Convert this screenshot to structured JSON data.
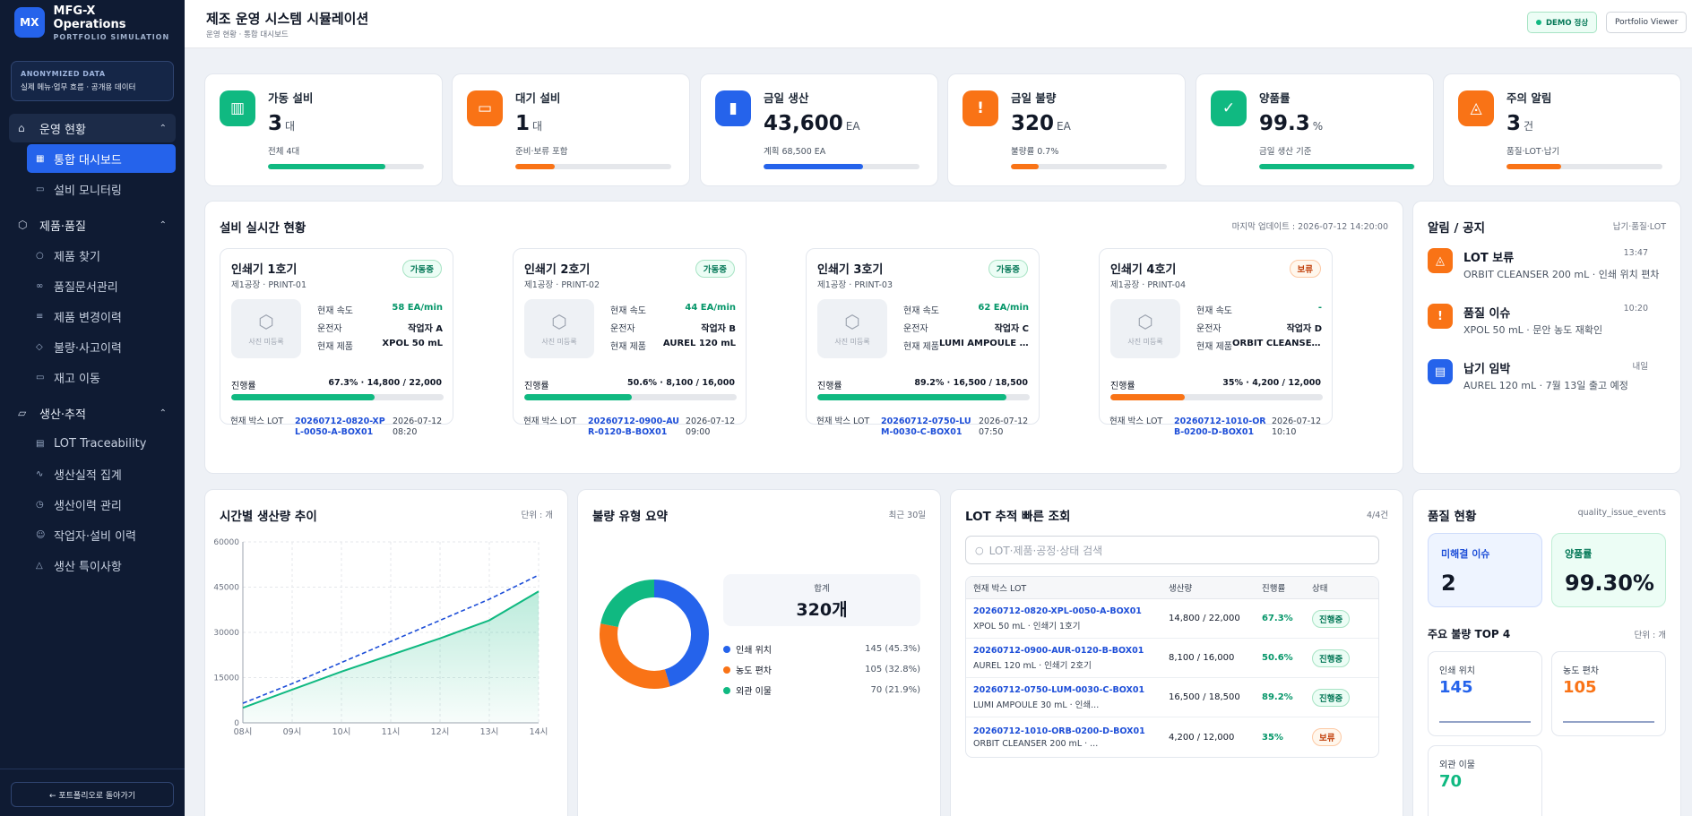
{
  "sidebar": {
    "brand": {
      "logo": "MX",
      "name": "MFG-X Operations",
      "sub": "PORTFOLIO SIMULATION"
    },
    "anon": {
      "title": "ANONYMIZED DATA",
      "desc": "실제 메뉴·업무 흐름 · 공개용 데이터"
    },
    "groups": [
      {
        "label": "운영 현황",
        "icon": "home-icon",
        "items": [
          {
            "label": "통합 대시보드",
            "icon": "grid-icon",
            "active": true
          },
          {
            "label": "설비 모니터링",
            "icon": "monitor-icon"
          }
        ]
      },
      {
        "label": "제품·품질",
        "icon": "box-icon",
        "items": [
          {
            "label": "제품 찾기",
            "icon": "search-icon"
          },
          {
            "label": "품질문서관리",
            "icon": "link-icon"
          },
          {
            "label": "제품 변경이력",
            "icon": "database-icon"
          },
          {
            "label": "불량·사고이력",
            "icon": "shield-icon"
          },
          {
            "label": "재고 이동",
            "icon": "truck-icon"
          }
        ]
      },
      {
        "label": "생산·추적",
        "icon": "folder-icon",
        "items": [
          {
            "label": "LOT Traceability",
            "icon": "clipboard-icon"
          },
          {
            "label": "생산실적 집계",
            "icon": "activity-icon"
          },
          {
            "label": "생산이력 관리",
            "icon": "history-icon"
          },
          {
            "label": "작업자·설비 이력",
            "icon": "users-icon"
          },
          {
            "label": "생산 특이사항",
            "icon": "warning-icon"
          }
        ]
      }
    ],
    "back": "← 포트폴리오로 돌아가기"
  },
  "header": {
    "title": "제조 운영 시스템 시뮬레이션",
    "crumb": "운영 현황 · 통합 대시보드",
    "demo": "DEMO 정상",
    "viewer": "Portfolio Viewer"
  },
  "kpis": [
    {
      "label": "가동 설비",
      "value": "3",
      "unit": "대",
      "sub": "전체 4대",
      "progress": 0.75,
      "color": "#10b981",
      "icon": "factory-icon"
    },
    {
      "label": "대기 설비",
      "value": "1",
      "unit": "대",
      "sub": "준비·보류 포함",
      "progress": 0.25,
      "color": "#f97316",
      "icon": "monitor-icon"
    },
    {
      "label": "금일 생산",
      "value": "43,600",
      "unit": "EA",
      "sub": "계획 68,500 EA",
      "progress": 0.64,
      "color": "#2563eb",
      "icon": "bar-chart-icon"
    },
    {
      "label": "금일 불량",
      "value": "320",
      "unit": "EA",
      "sub": "불량률 0.7%",
      "progress": 0.18,
      "color": "#f97316",
      "icon": "warning-icon"
    },
    {
      "label": "양품률",
      "value": "99.3",
      "unit": "%",
      "sub": "금일 생산 기준",
      "progress": 0.993,
      "color": "#10b981",
      "icon": "shield-check-icon"
    },
    {
      "label": "주의 알림",
      "value": "3",
      "unit": "건",
      "sub": "품질·LOT·납기",
      "progress": 0.35,
      "color": "#f97316",
      "icon": "siren-icon"
    }
  ],
  "equipment": {
    "title": "설비 실시간 현황",
    "updated": "마지막 업데이트 : 2026-07-12 14:20:00",
    "photo_label": "사진 미등록",
    "speed_label": "현재 속도",
    "operator_label": "운전자",
    "product_label": "현재 제품",
    "progress_label": "진행률",
    "box_lot_label": "현재 박스 LOT",
    "items": [
      {
        "name": "인쇄기 1호기",
        "loc": "제1공장 · PRINT-01",
        "status": "가동중",
        "speed": "58 EA/min",
        "operator": "작업자 A",
        "product": "XPOL 50 mL",
        "progress_text": "67.3% · 14,800 / 22,000",
        "progress": 0.673,
        "lot": "20260712-0820-XPL-0050-A-BOX01",
        "date": "2026-07-12",
        "time": "08:20"
      },
      {
        "name": "인쇄기 2호기",
        "loc": "제1공장 · PRINT-02",
        "status": "가동중",
        "speed": "44 EA/min",
        "operator": "작업자 B",
        "product": "AUREL 120 mL",
        "progress_text": "50.6% · 8,100 / 16,000",
        "progress": 0.506,
        "lot": "20260712-0900-AUR-0120-B-BOX01",
        "date": "2026-07-12",
        "time": "09:00"
      },
      {
        "name": "인쇄기 3호기",
        "loc": "제1공장 · PRINT-03",
        "status": "가동중",
        "speed": "62 EA/min",
        "operator": "작업자 C",
        "product": "LUMI AMPOULE 3...",
        "progress_text": "89.2% · 16,500 / 18,500",
        "progress": 0.892,
        "lot": "20260712-0750-LUM-0030-C-BOX01",
        "date": "2026-07-12",
        "time": "07:50"
      },
      {
        "name": "인쇄기 4호기",
        "loc": "제1공장 · PRINT-04",
        "status": "보류",
        "speed": "-",
        "operator": "작업자 D",
        "product": "ORBIT CLEANSER ...",
        "progress_text": "35% · 4,200 / 12,000",
        "progress": 0.35,
        "lot": "20260712-1010-ORB-0200-D-BOX01",
        "date": "2026-07-12",
        "time": "10:10"
      }
    ]
  },
  "alerts": {
    "title": "알림 / 공지",
    "meta": "납기·품질·LOT",
    "items": [
      {
        "title": "LOT 보류",
        "desc": "ORBIT CLEANSER 200 mL · 인쇄 위치 편차",
        "time": "13:47",
        "color": "#f97316",
        "icon": "siren-icon"
      },
      {
        "title": "품질 이슈",
        "desc": "XPOL 50 mL · 문안 농도 재확인",
        "time": "10:20",
        "color": "#f97316",
        "icon": "warning-icon"
      },
      {
        "title": "납기 임박",
        "desc": "AUREL 120 mL · 7월 13일 출고 예정",
        "time": "내일",
        "color": "#2563eb",
        "icon": "clipboard-icon"
      }
    ]
  },
  "hourly": {
    "title": "시간별 생산량 추이",
    "unit": "단위 : 개"
  },
  "defects": {
    "title": "불량 유형 요약",
    "meta": "최근 30일",
    "total_label": "합계",
    "total_value": "320개",
    "legend": [
      {
        "name": "인쇄 위치",
        "value": "145 (45.3%)",
        "color": "#2563eb"
      },
      {
        "name": "농도 편차",
        "value": "105 (32.8%)",
        "color": "#f97316"
      },
      {
        "name": "외관 이물",
        "value": "70 (21.9%)",
        "color": "#10b981"
      }
    ]
  },
  "lot": {
    "title": "LOT 추적 빠른 조회",
    "count": "4/4건",
    "placeholder": "LOT·제품·공정·상태 검색",
    "headers": [
      "현재 박스 LOT",
      "생산량",
      "진행률",
      "상태"
    ],
    "rows": [
      {
        "lot": "20260712-0820-XPL-0050-A-BOX01",
        "desc": "XPOL 50 mL · 인쇄기 1호기",
        "qty": "14,800 / 22,000",
        "pct": "67.3%",
        "status": "진행중"
      },
      {
        "lot": "20260712-0900-AUR-0120-B-BOX01",
        "desc": "AUREL 120 mL · 인쇄기 2호기",
        "qty": "8,100 / 16,000",
        "pct": "50.6%",
        "status": "진행중"
      },
      {
        "lot": "20260712-0750-LUM-0030-C-BOX01",
        "desc": "LUMI AMPOULE 30 mL · 인쇄...",
        "qty": "16,500 / 18,500",
        "pct": "89.2%",
        "status": "진행중"
      },
      {
        "lot": "20260712-1010-ORB-0200-D-BOX01",
        "desc": "ORBIT CLEANSER 200 mL · ...",
        "qty": "4,200 / 12,000",
        "pct": "35%",
        "status": "보류"
      }
    ]
  },
  "quality": {
    "title": "품질 현황",
    "meta": "quality_issue_events",
    "open_label": "미해결 이슈",
    "open_value": "2",
    "yield_label": "양품률",
    "yield_value": "99.30%",
    "top_title": "주요 불량 TOP 4",
    "top_unit": "단위 : 개",
    "tiles": [
      {
        "name": "인쇄 위치",
        "value": "145",
        "color": "#2563eb"
      },
      {
        "name": "농도 편차",
        "value": "105",
        "color": "#f97316"
      },
      {
        "name": "외관 이물",
        "value": "70",
        "color": "#10b981"
      }
    ]
  },
  "chart_data": [
    {
      "type": "line",
      "title": "시간별 생산량 추이",
      "x": [
        "08시",
        "09시",
        "10시",
        "11시",
        "12시",
        "13시",
        "14시"
      ],
      "series": [
        {
          "values": [
            6500,
            13000,
            20000,
            27000,
            34000,
            41000,
            49000
          ],
          "style": "dashed",
          "color": "#1d4ed8"
        },
        {
          "values": [
            5000,
            11000,
            17000,
            22500,
            28000,
            34000,
            43600
          ],
          "style": "area",
          "color": "#10b981"
        }
      ],
      "yticks": [
        0,
        15000,
        30000,
        45000,
        60000
      ],
      "ylim": [
        0,
        60000
      ],
      "grid": true
    },
    {
      "type": "pie",
      "title": "불량 유형 요약",
      "labels": [
        "인쇄 위치",
        "농도 편차",
        "외관 이물"
      ],
      "values": [
        145,
        105,
        70
      ],
      "colors": [
        "#2563eb",
        "#f97316",
        "#10b981"
      ]
    }
  ]
}
